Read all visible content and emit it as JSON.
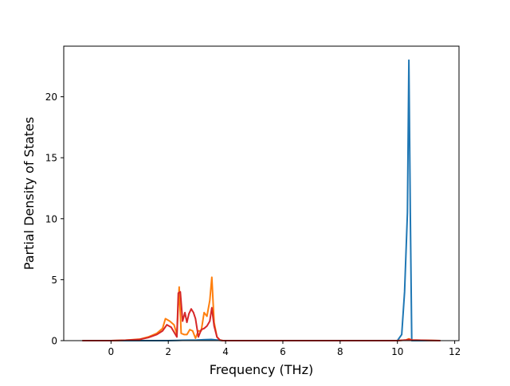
{
  "chart_data": {
    "type": "line",
    "xlabel": "Frequency (THz)",
    "ylabel": "Partial Density of States",
    "xlim": [
      -1.65,
      12.15
    ],
    "ylim": [
      0,
      24.15
    ],
    "xticks": [
      0,
      2,
      4,
      6,
      8,
      10,
      12
    ],
    "yticks": [
      0,
      5,
      10,
      15,
      20
    ],
    "grid": false,
    "series": [
      {
        "color": "#1f77b4",
        "x": [
          -1.0,
          0,
          1,
          2,
          2.3,
          2.5,
          3,
          3.3,
          3.5,
          3.7,
          3.9,
          4.5,
          6,
          8,
          10.0,
          10.15,
          10.25,
          10.35,
          10.4,
          10.45,
          10.5,
          11.5
        ],
        "y": [
          0,
          0,
          0,
          0,
          0.02,
          0.03,
          0.05,
          0.08,
          0.1,
          0.05,
          0,
          0,
          0,
          0,
          0,
          0.5,
          4.0,
          10.5,
          23.0,
          10.5,
          0.0,
          0
        ]
      },
      {
        "color": "#ff7f0e",
        "x": [
          -1.0,
          0,
          0.5,
          1.0,
          1.3,
          1.6,
          1.8,
          1.9,
          2.05,
          2.2,
          2.3,
          2.38,
          2.45,
          2.55,
          2.65,
          2.75,
          2.85,
          2.95,
          3.05,
          3.15,
          3.25,
          3.35,
          3.45,
          3.52,
          3.6,
          3.7,
          3.8,
          3.9,
          4.2,
          6,
          8,
          10,
          10.3,
          10.4,
          10.5,
          11.5
        ],
        "y": [
          0,
          0,
          0.03,
          0.12,
          0.3,
          0.6,
          1.0,
          1.8,
          1.6,
          1.3,
          0.5,
          4.4,
          0.6,
          0.5,
          0.5,
          0.9,
          0.8,
          0.2,
          0.8,
          0.8,
          2.3,
          2.0,
          3.3,
          5.2,
          1.5,
          0.3,
          0.05,
          0,
          0,
          0,
          0,
          0,
          0.05,
          0.15,
          0.05,
          0
        ]
      },
      {
        "color": "#d62728",
        "x": [
          -1.0,
          0,
          0.5,
          1.0,
          1.3,
          1.6,
          1.8,
          1.95,
          2.1,
          2.2,
          2.3,
          2.35,
          2.42,
          2.5,
          2.58,
          2.65,
          2.72,
          2.8,
          2.88,
          2.95,
          3.05,
          3.15,
          3.25,
          3.35,
          3.45,
          3.52,
          3.6,
          3.7,
          3.8,
          3.9,
          4.2,
          6,
          8,
          10,
          10.3,
          10.4,
          10.5,
          11.5
        ],
        "y": [
          0,
          0,
          0.03,
          0.1,
          0.25,
          0.5,
          0.8,
          1.3,
          1.1,
          0.7,
          0.3,
          3.9,
          4.0,
          1.6,
          2.3,
          1.5,
          2.2,
          2.6,
          2.3,
          1.8,
          0.3,
          0.9,
          1.0,
          1.2,
          1.6,
          2.7,
          1.2,
          0.3,
          0.05,
          0,
          0,
          0,
          0,
          0,
          0.05,
          0.1,
          0.05,
          0
        ]
      }
    ]
  }
}
